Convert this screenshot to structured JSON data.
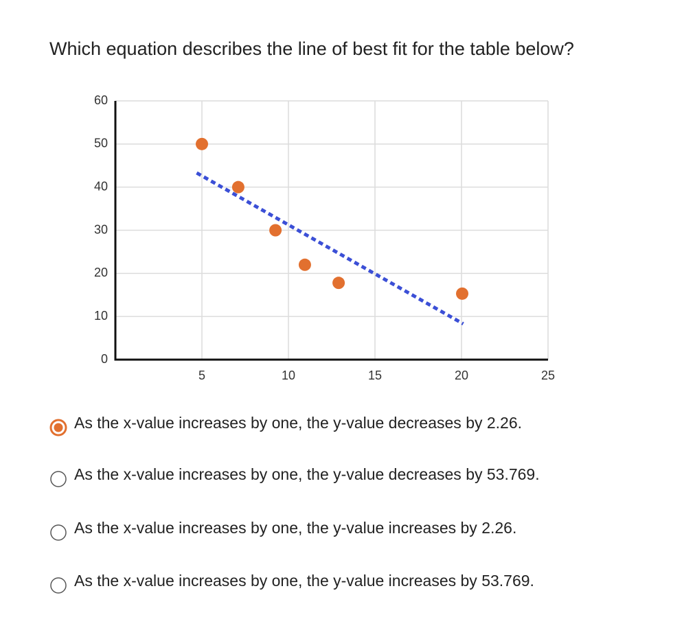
{
  "question": "Which equation describes the line of best fit for the table below?",
  "chart_data": {
    "type": "scatter",
    "x": [
      5,
      7.1,
      9.25,
      10.95,
      12.9,
      20.04
    ],
    "values": [
      50,
      40,
      30,
      22,
      17.8,
      15.3
    ],
    "color": "#e2702f",
    "trendline": {
      "x": [
        4.7,
        20.1
      ],
      "values": [
        43.3,
        8.3
      ],
      "color": "#3b4fd6",
      "style": "dashed"
    },
    "xlim": [
      0,
      25
    ],
    "xticks": [
      5,
      10,
      15,
      20,
      25
    ],
    "ylim": [
      0,
      60
    ],
    "yticks": [
      0,
      10,
      20,
      30,
      40,
      50,
      60
    ],
    "grid": true
  },
  "options": [
    {
      "text": "As the x-value increases by one, the y-value decreases by 2.26.",
      "selected": true
    },
    {
      "text": "As the x-value increases by one, the y-value decreases by 53.769.",
      "selected": false
    },
    {
      "text": "As the x-value increases by one, the y-value increases by 2.26.",
      "selected": false
    },
    {
      "text": "As the x-value increases by one, the y-value increases by 53.769.",
      "selected": false
    }
  ]
}
